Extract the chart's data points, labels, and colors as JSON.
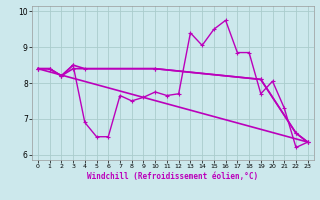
{
  "xlabel": "Windchill (Refroidissement éolien,°C)",
  "bg_color": "#cce8ec",
  "line_color": "#bb00bb",
  "grid_color": "#aacccc",
  "xlim": [
    -0.5,
    23.5
  ],
  "ylim": [
    5.85,
    10.15
  ],
  "yticks": [
    6,
    7,
    8,
    9,
    10
  ],
  "xticks": [
    0,
    1,
    2,
    3,
    4,
    5,
    6,
    7,
    8,
    9,
    10,
    11,
    12,
    13,
    14,
    15,
    16,
    17,
    18,
    19,
    20,
    21,
    22,
    23
  ],
  "series1_x": [
    0,
    1,
    2,
    3,
    4,
    5,
    6,
    7,
    8,
    9,
    10,
    11,
    12,
    13,
    14,
    15,
    16,
    17,
    18,
    19,
    20,
    21,
    22,
    23
  ],
  "series1_y": [
    8.4,
    8.4,
    8.2,
    8.5,
    6.9,
    6.5,
    6.5,
    7.65,
    7.5,
    7.6,
    7.75,
    7.65,
    7.7,
    9.4,
    9.05,
    9.5,
    9.75,
    8.85,
    8.85,
    7.7,
    8.05,
    7.3,
    6.2,
    6.35
  ],
  "series2_x": [
    0,
    1,
    2,
    3,
    10,
    19,
    22,
    23
  ],
  "series2_y": [
    8.4,
    8.4,
    8.2,
    8.4,
    8.4,
    8.1,
    6.6,
    6.35
  ],
  "series3_x": [
    0,
    23
  ],
  "series3_y": [
    8.4,
    6.35
  ],
  "series4_x": [
    0,
    1,
    2,
    3,
    4,
    10,
    19,
    22,
    23
  ],
  "series4_y": [
    8.4,
    8.4,
    8.2,
    8.5,
    8.4,
    8.4,
    8.1,
    6.6,
    6.35
  ]
}
